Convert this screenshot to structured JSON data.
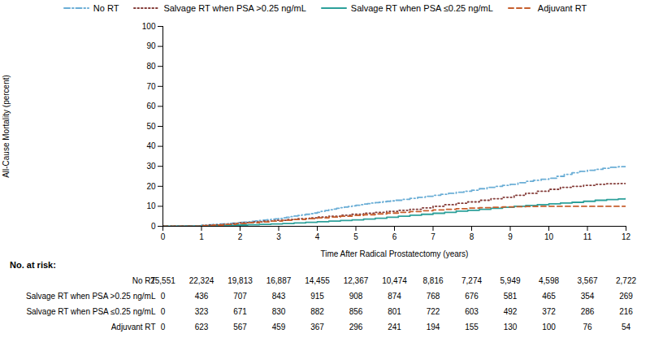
{
  "chart_data": {
    "type": "step",
    "xlabel": "Time After Radical Prostatectomy (years)",
    "ylabel": "All-Cause Mortality (percent)",
    "xlim": [
      0,
      12
    ],
    "ylim": [
      0,
      100
    ],
    "xticks": [
      0,
      1,
      2,
      3,
      4,
      5,
      6,
      7,
      8,
      9,
      10,
      11,
      12
    ],
    "yticks": [
      0,
      10,
      20,
      30,
      40,
      50,
      60,
      70,
      80,
      90,
      100
    ],
    "grid": false,
    "legend": "top",
    "series": [
      {
        "name": "No RT",
        "color": "#6BAED6",
        "line_style": "dashdot",
        "x": [
          0,
          0.5,
          1.0,
          1.1,
          1.2,
          1.3,
          1.4,
          1.5,
          1.6,
          1.7,
          1.8,
          1.9,
          2.0,
          2.1,
          2.2,
          2.3,
          2.4,
          2.5,
          2.6,
          2.7,
          2.8,
          2.9,
          3.0,
          3.1,
          3.2,
          3.3,
          3.4,
          3.5,
          3.6,
          3.7,
          3.8,
          3.9,
          4.0,
          4.1,
          4.2,
          4.3,
          4.4,
          4.5,
          4.6,
          4.7,
          4.8,
          4.9,
          5.0,
          5.1,
          5.2,
          5.3,
          5.4,
          5.5,
          5.6,
          5.7,
          5.8,
          5.9,
          6.0,
          6.2,
          6.4,
          6.6,
          6.8,
          7.0,
          7.2,
          7.4,
          7.6,
          7.8,
          8.0,
          8.2,
          8.4,
          8.6,
          8.8,
          9.0,
          9.2,
          9.4,
          9.6,
          9.8,
          10.0,
          10.2,
          10.4,
          10.6,
          10.8,
          11.0,
          11.2,
          11.4,
          11.6,
          11.8,
          12.0
        ],
        "values": [
          0,
          0.2,
          0.5,
          0.6,
          0.8,
          1.0,
          1.1,
          1.2,
          1.3,
          1.5,
          1.6,
          1.8,
          2.0,
          2.1,
          2.3,
          2.5,
          2.7,
          2.9,
          3.1,
          3.3,
          3.5,
          3.7,
          3.9,
          4.2,
          4.5,
          4.8,
          5.1,
          5.4,
          5.7,
          6.0,
          6.3,
          6.6,
          7.0,
          7.5,
          7.9,
          8.3,
          8.6,
          9.0,
          9.3,
          9.6,
          9.9,
          10.2,
          10.5,
          10.8,
          11.1,
          11.3,
          11.6,
          11.8,
          12.0,
          12.3,
          12.5,
          12.7,
          13.0,
          13.5,
          14.0,
          14.5,
          15.0,
          15.5,
          16.0,
          16.5,
          17.0,
          17.5,
          18.0,
          18.8,
          19.5,
          20.0,
          20.5,
          21.0,
          21.8,
          22.5,
          23.0,
          23.5,
          24.0,
          25.0,
          26.0,
          26.8,
          27.5,
          28.0,
          28.5,
          29.0,
          29.5,
          29.8,
          30.0
        ]
      },
      {
        "name": "Salvage RT when PSA >0.25 ng/mL",
        "color": "#843C39",
        "line_style": "dotted",
        "x": [
          0,
          1.0,
          1.2,
          1.5,
          1.8,
          2.0,
          2.3,
          2.6,
          2.9,
          3.2,
          3.5,
          3.8,
          4.0,
          4.3,
          4.6,
          4.9,
          5.2,
          5.5,
          5.8,
          6.1,
          6.4,
          6.7,
          7.0,
          7.3,
          7.6,
          7.9,
          8.2,
          8.5,
          8.8,
          9.1,
          9.4,
          9.7,
          10.0,
          10.3,
          10.6,
          10.9,
          11.2,
          11.5,
          11.8,
          12.0
        ],
        "values": [
          0,
          0.3,
          0.6,
          1.0,
          1.4,
          1.8,
          2.2,
          2.6,
          3.0,
          3.4,
          3.8,
          4.2,
          4.6,
          5.0,
          5.5,
          6.0,
          6.5,
          7.0,
          7.5,
          8.0,
          8.5,
          9.2,
          10.0,
          10.8,
          11.5,
          12.2,
          13.0,
          13.8,
          14.5,
          15.5,
          16.5,
          17.5,
          18.5,
          19.5,
          20.0,
          20.5,
          21.0,
          21.3,
          21.4,
          21.5
        ]
      },
      {
        "name": "Salvage RT when PSA ≤0.25 ng/mL",
        "color": "#2CA09A",
        "line_style": "solid",
        "x": [
          0,
          1.0,
          1.3,
          1.6,
          1.9,
          2.2,
          2.5,
          2.8,
          3.1,
          3.4,
          3.7,
          4.0,
          4.3,
          4.6,
          4.9,
          5.2,
          5.5,
          5.8,
          6.1,
          6.4,
          6.7,
          7.0,
          7.3,
          7.6,
          7.9,
          8.2,
          8.5,
          8.8,
          9.1,
          9.4,
          9.7,
          10.0,
          10.3,
          10.6,
          10.9,
          11.2,
          11.5,
          11.8,
          12.0
        ],
        "values": [
          0,
          0.1,
          0.2,
          0.4,
          0.6,
          0.8,
          1.0,
          1.2,
          1.4,
          1.7,
          2.0,
          2.3,
          2.6,
          2.9,
          3.2,
          3.6,
          4.0,
          4.5,
          5.0,
          5.5,
          6.0,
          6.5,
          7.0,
          7.6,
          8.0,
          8.5,
          9.0,
          9.5,
          10.0,
          10.4,
          10.8,
          11.2,
          11.6,
          12.0,
          12.5,
          13.0,
          13.4,
          13.7,
          14.0
        ]
      },
      {
        "name": "Adjuvant RT",
        "color": "#C65F2E",
        "line_style": "dashed",
        "x": [
          0,
          1.0,
          1.3,
          1.6,
          1.9,
          2.2,
          2.5,
          2.8,
          3.1,
          3.4,
          3.7,
          4.0,
          4.3,
          4.6,
          4.9,
          5.2,
          5.5,
          5.8,
          6.1,
          6.4,
          6.7,
          7.0,
          7.3,
          7.6,
          7.9,
          8.2,
          8.5,
          8.8,
          9.1,
          9.4,
          9.7,
          10.0,
          10.5,
          11.0,
          11.5,
          12.0
        ],
        "values": [
          0,
          0.3,
          0.6,
          1.0,
          1.4,
          1.8,
          2.2,
          2.6,
          3.0,
          3.4,
          3.8,
          4.2,
          4.6,
          5.0,
          5.4,
          5.8,
          6.2,
          6.6,
          7.0,
          7.4,
          7.8,
          8.2,
          8.5,
          8.8,
          9.1,
          9.3,
          9.5,
          9.7,
          9.8,
          9.9,
          10.0,
          10.0,
          10.0,
          10.0,
          10.0,
          10.0
        ]
      }
    ],
    "risk_table": {
      "header": "No. at risk:",
      "rows": [
        {
          "label": "No RT",
          "values": [
            "25,551",
            "22,324",
            "19,813",
            "16,887",
            "14,455",
            "12,367",
            "10,474",
            "8,816",
            "7,274",
            "5,949",
            "4,598",
            "3,567",
            "2,722"
          ]
        },
        {
          "label": "Salvage RT when PSA >0.25 ng/mL",
          "values": [
            "0",
            "436",
            "707",
            "843",
            "915",
            "908",
            "874",
            "768",
            "676",
            "581",
            "465",
            "354",
            "269"
          ]
        },
        {
          "label": "Salvage RT when PSA ≤0.25 ng/mL",
          "values": [
            "0",
            "323",
            "671",
            "830",
            "882",
            "856",
            "801",
            "722",
            "603",
            "492",
            "372",
            "286",
            "216"
          ]
        },
        {
          "label": "Adjuvant RT",
          "values": [
            "0",
            "623",
            "567",
            "459",
            "367",
            "296",
            "241",
            "194",
            "155",
            "130",
            "100",
            "76",
            "54"
          ]
        }
      ]
    }
  }
}
